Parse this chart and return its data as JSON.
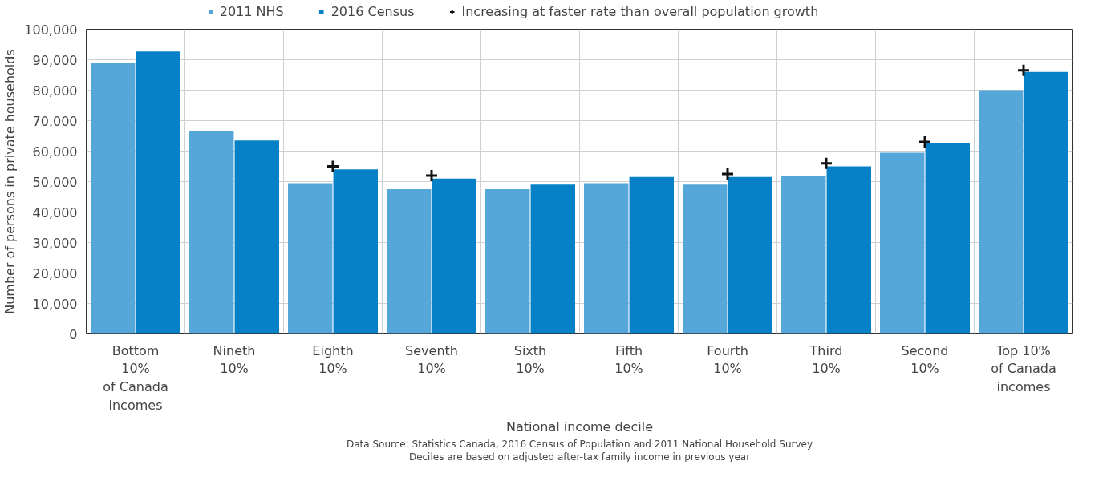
{
  "chart_data": {
    "type": "bar",
    "xlabel": "National income decile",
    "ylabel": "Number of persons in private households",
    "categories": [
      "Bottom\n10%\nof Canada\nincomes",
      "Nineth\n10%",
      "Eighth\n10%",
      "Seventh\n10%",
      "Sixth\n10%",
      "Fifth\n10%",
      "Fourth\n10%",
      "Third\n10%",
      "Second\n10%",
      "Top 10%\nof Canada\nincomes"
    ],
    "series": [
      {
        "name": "2011 NHS",
        "color": "#55a7d9",
        "values": [
          89000,
          66500,
          49500,
          47500,
          47500,
          49500,
          49000,
          52000,
          59500,
          80000
        ]
      },
      {
        "name": "2016 Census",
        "color": "#0680c6",
        "values": [
          92700,
          63500,
          54000,
          51000,
          49000,
          51500,
          51500,
          55000,
          62500,
          86000
        ]
      },
      {
        "name": "Increasing at faster rate than overall population growth",
        "type": "scatter",
        "marker": "cross",
        "color": "#111111",
        "values": [
          null,
          null,
          55000,
          52000,
          null,
          null,
          52500,
          56000,
          63000,
          86500
        ]
      }
    ],
    "ylim": [
      0,
      100000
    ],
    "yticks": [
      0,
      {
        "value": 10000,
        "label": "10,000"
      },
      {
        "value": 20000,
        "label": "20,000"
      },
      {
        "value": 30000,
        "label": "30,000"
      },
      {
        "value": 40000,
        "label": "40,000"
      },
      {
        "value": 50000,
        "label": "50,000"
      },
      {
        "value": 60000,
        "label": "60,000"
      },
      {
        "value": 70000,
        "label": "70,000"
      },
      {
        "value": 80000,
        "label": "80,000"
      },
      {
        "value": 90000,
        "label": "90,000"
      },
      {
        "value": 100000,
        "label": "100,000"
      }
    ],
    "grid": true,
    "legend": "top",
    "annotations": [
      "Data Source: Statistics Canada, 2016 Census of Population and 2011 National Household Survey",
      "Deciles are based on adjusted after-tax family income in previous year"
    ]
  }
}
